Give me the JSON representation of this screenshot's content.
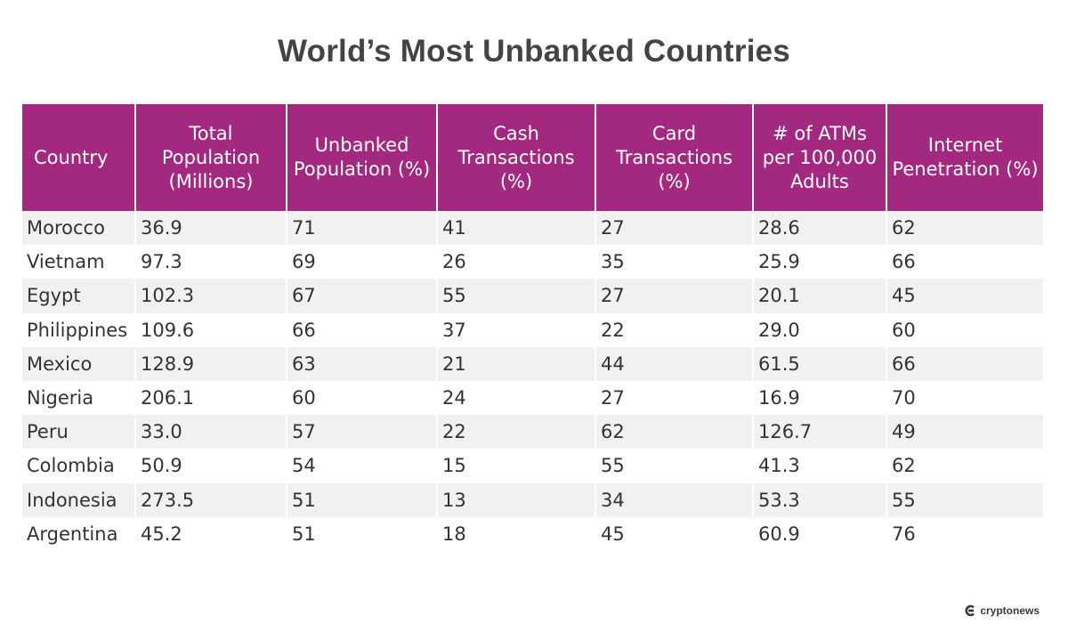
{
  "chart_data": {
    "type": "table",
    "title": "World’s Most Unbanked Countries",
    "columns": [
      "Country",
      "Total Population (Millions)",
      "Unbanked Population (%)",
      "Cash Transactions (%)",
      "Card Transactions (%)",
      "# of ATMs per 100,000 Adults",
      "Internet Penetration (%)"
    ],
    "rows": [
      [
        "Morocco",
        "36.9",
        "71",
        "41",
        "27",
        "28.6",
        "62"
      ],
      [
        "Vietnam",
        "97.3",
        "69",
        "26",
        "35",
        "25.9",
        "66"
      ],
      [
        "Egypt",
        "102.3",
        "67",
        "55",
        "27",
        "20.1",
        "45"
      ],
      [
        "Philippines",
        "109.6",
        "66",
        "37",
        "22",
        "29.0",
        "60"
      ],
      [
        "Mexico",
        "128.9",
        "63",
        "21",
        "44",
        "61.5",
        "66"
      ],
      [
        "Nigeria",
        "206.1",
        "60",
        "24",
        "27",
        "16.9",
        "70"
      ],
      [
        "Peru",
        "33.0",
        "57",
        "22",
        "62",
        "126.7",
        "49"
      ],
      [
        "Colombia",
        "50.9",
        "54",
        "15",
        "55",
        "41.3",
        "62"
      ],
      [
        "Indonesia",
        "273.5",
        "51",
        "13",
        "34",
        "53.3",
        "55"
      ],
      [
        "Argentina",
        "45.2",
        "51",
        "18",
        "45",
        "60.9",
        "76"
      ]
    ],
    "header_color": "#a3287f",
    "stripe_color": "#f1f1f1"
  },
  "brand": {
    "name": "cryptonews",
    "logo_icon": "cryptonews-logo-icon"
  }
}
